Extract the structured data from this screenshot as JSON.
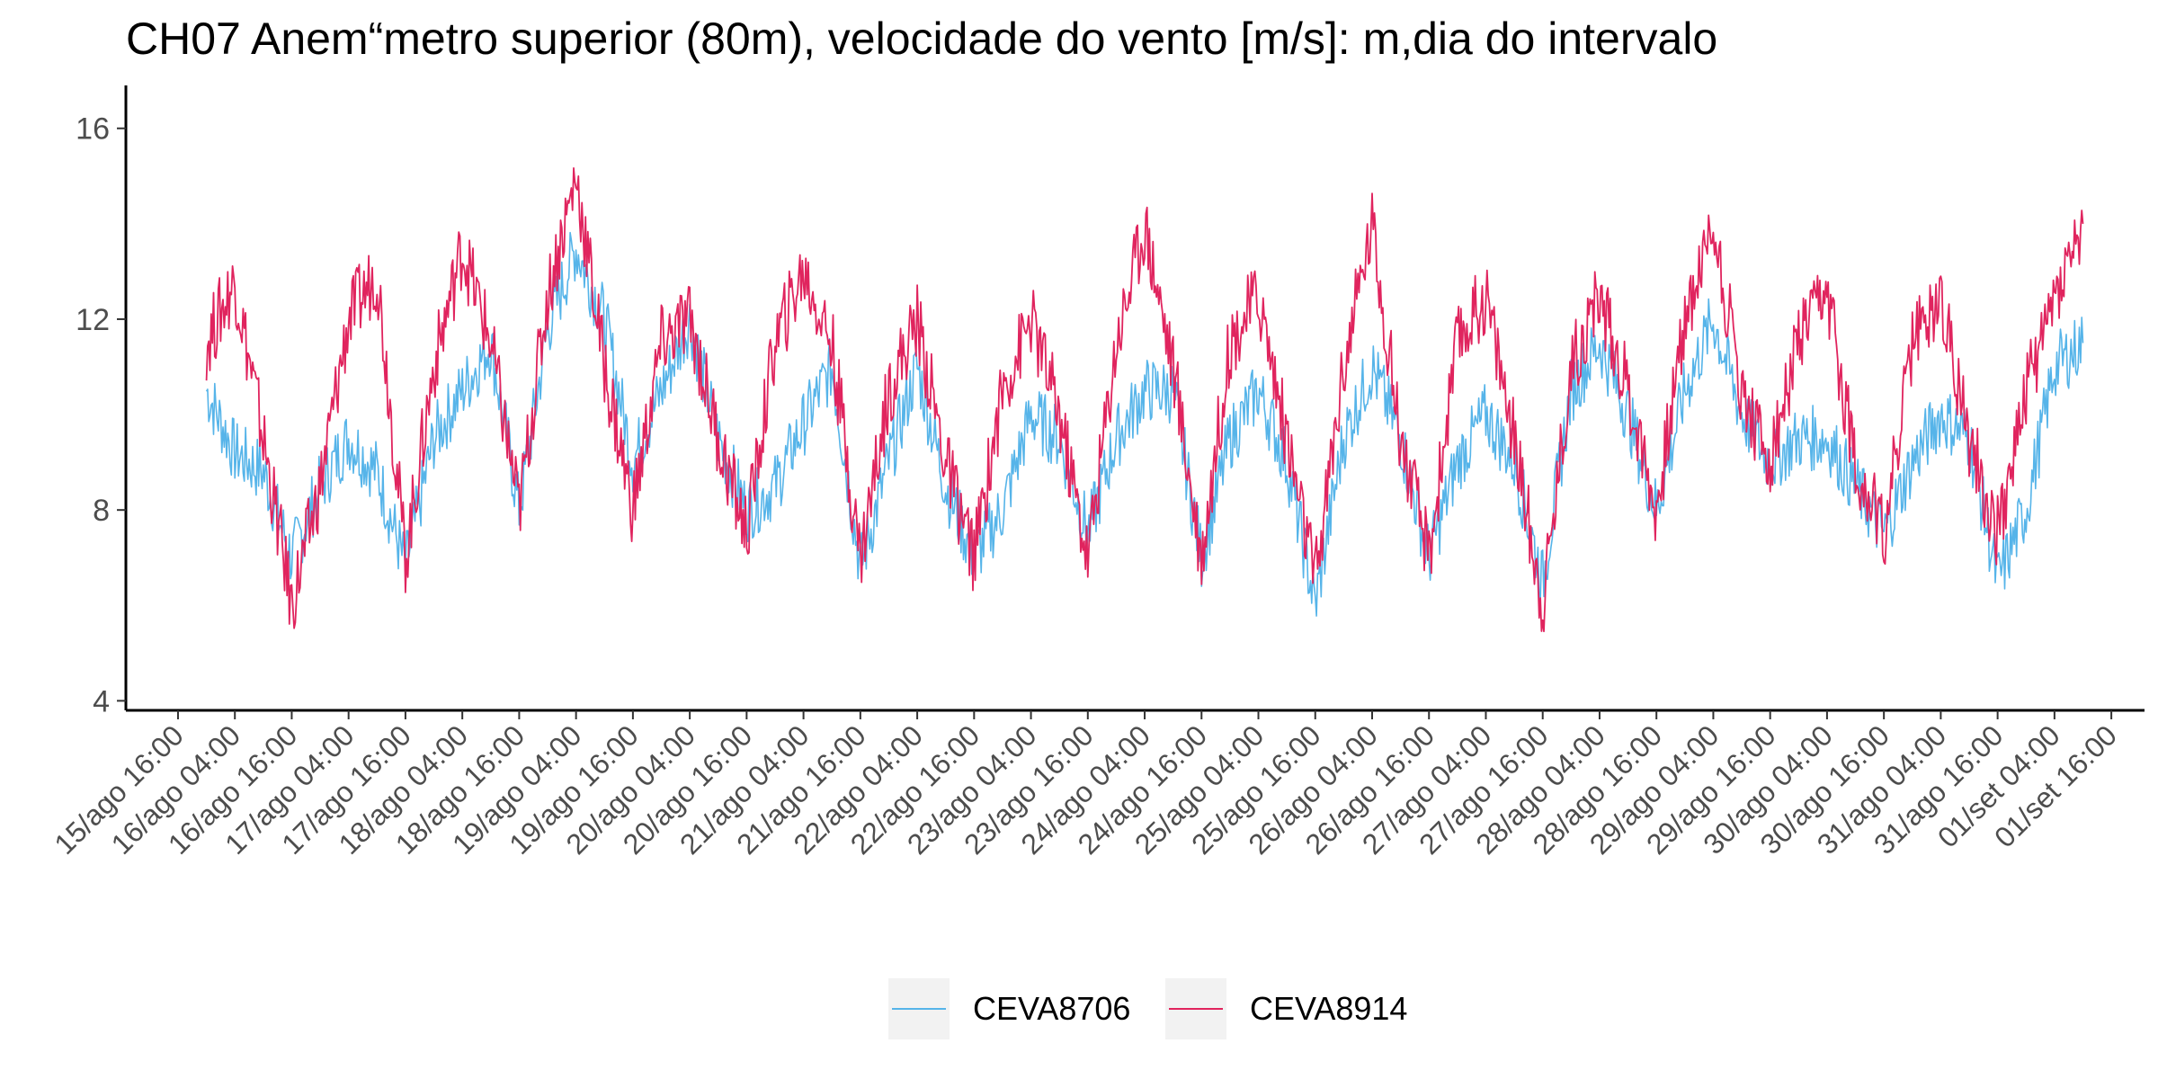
{
  "chart_data": {
    "type": "line",
    "title": "CH07 Anem“metro superior (80m), velocidade do vento [m/s]: m,dia do intervalo",
    "xlabel": "",
    "ylabel": "",
    "ylim": [
      3.8,
      16.9
    ],
    "yticks": [
      4,
      8,
      12,
      16
    ],
    "xlim_hours": [
      -11,
      415
    ],
    "x_start_label": "15/ago 16:00",
    "x_ticks": [
      "15/ago 16:00",
      "16/ago 04:00",
      "16/ago 16:00",
      "17/ago 04:00",
      "17/ago 16:00",
      "18/ago 04:00",
      "18/ago 16:00",
      "19/ago 04:00",
      "19/ago 16:00",
      "20/ago 04:00",
      "20/ago 16:00",
      "21/ago 04:00",
      "21/ago 16:00",
      "22/ago 04:00",
      "22/ago 16:00",
      "23/ago 04:00",
      "23/ago 16:00",
      "24/ago 04:00",
      "24/ago 16:00",
      "25/ago 04:00",
      "25/ago 16:00",
      "26/ago 04:00",
      "26/ago 16:00",
      "27/ago 04:00",
      "27/ago 16:00",
      "28/ago 04:00",
      "28/ago 16:00",
      "29/ago 04:00",
      "29/ago 16:00",
      "30/ago 04:00",
      "30/ago 16:00",
      "31/ago 04:00",
      "31/ago 16:00",
      "01/set 04:00",
      "01/set 16:00"
    ],
    "grid": false,
    "legend_position": "bottom",
    "series": [
      {
        "name": "CEVA8706",
        "color": "#56B4E9",
        "x": [
          "15/ago 22:00",
          "16/ago 04:00",
          "16/ago 10:00",
          "16/ago 16:00",
          "16/ago 22:00",
          "17/ago 04:00",
          "17/ago 10:00",
          "17/ago 16:00",
          "17/ago 22:00",
          "18/ago 04:00",
          "18/ago 10:00",
          "18/ago 16:00",
          "18/ago 22:00",
          "19/ago 04:00",
          "19/ago 10:00",
          "19/ago 16:00",
          "19/ago 22:00",
          "20/ago 04:00",
          "20/ago 10:00",
          "20/ago 16:00",
          "20/ago 22:00",
          "21/ago 04:00",
          "21/ago 10:00",
          "21/ago 16:00",
          "21/ago 22:00",
          "22/ago 04:00",
          "22/ago 10:00",
          "22/ago 16:00",
          "22/ago 22:00",
          "23/ago 04:00",
          "23/ago 10:00",
          "23/ago 16:00",
          "23/ago 22:00",
          "24/ago 04:00",
          "24/ago 10:00",
          "24/ago 16:00",
          "24/ago 22:00",
          "25/ago 04:00",
          "25/ago 10:00",
          "25/ago 16:00",
          "25/ago 22:00",
          "26/ago 04:00",
          "26/ago 10:00",
          "26/ago 16:00",
          "26/ago 22:00",
          "27/ago 04:00",
          "27/ago 10:00",
          "27/ago 16:00",
          "27/ago 22:00",
          "28/ago 04:00",
          "28/ago 10:00",
          "28/ago 16:00",
          "28/ago 22:00",
          "29/ago 04:00",
          "29/ago 10:00",
          "29/ago 16:00",
          "29/ago 22:00",
          "30/ago 04:00",
          "30/ago 10:00",
          "30/ago 16:00",
          "30/ago 22:00",
          "31/ago 04:00",
          "31/ago 10:00",
          "31/ago 16:00",
          "31/ago 22:00",
          "01/set 04:00",
          "01/set 10:00"
        ],
        "values": [
          10.5,
          9.2,
          8.8,
          7.0,
          8.5,
          9.5,
          8.8,
          6.8,
          9.5,
          10.5,
          11.5,
          8.0,
          11.8,
          13.5,
          12.0,
          9.0,
          10.5,
          12.0,
          9.5,
          8.0,
          8.5,
          9.8,
          11.0,
          6.8,
          9.0,
          11.0,
          8.5,
          7.0,
          8.0,
          10.0,
          9.5,
          7.5,
          9.5,
          10.5,
          10.5,
          7.0,
          9.5,
          10.5,
          9.0,
          6.0,
          9.5,
          11.0,
          9.5,
          7.0,
          9.0,
          10.0,
          9.0,
          6.5,
          10.5,
          11.5,
          10.0,
          8.0,
          10.5,
          12.0,
          10.0,
          9.0,
          9.5,
          9.5,
          8.5,
          7.5,
          9.0,
          10.0,
          9.5,
          6.5,
          8.0,
          11.0,
          11.5
        ]
      },
      {
        "name": "CEVA8914",
        "color": "#E0245E",
        "x": [
          "15/ago 22:00",
          "16/ago 04:00",
          "16/ago 10:00",
          "16/ago 16:00",
          "16/ago 22:00",
          "17/ago 04:00",
          "17/ago 10:00",
          "17/ago 16:00",
          "17/ago 22:00",
          "18/ago 04:00",
          "18/ago 10:00",
          "18/ago 16:00",
          "18/ago 22:00",
          "19/ago 04:00",
          "19/ago 10:00",
          "19/ago 16:00",
          "19/ago 22:00",
          "20/ago 04:00",
          "20/ago 10:00",
          "20/ago 16:00",
          "20/ago 22:00",
          "21/ago 04:00",
          "21/ago 10:00",
          "21/ago 16:00",
          "21/ago 22:00",
          "22/ago 04:00",
          "22/ago 10:00",
          "22/ago 16:00",
          "22/ago 22:00",
          "23/ago 04:00",
          "23/ago 10:00",
          "23/ago 16:00",
          "23/ago 22:00",
          "24/ago 04:00",
          "24/ago 10:00",
          "24/ago 16:00",
          "24/ago 22:00",
          "25/ago 04:00",
          "25/ago 10:00",
          "25/ago 16:00",
          "25/ago 22:00",
          "26/ago 04:00",
          "26/ago 10:00",
          "26/ago 16:00",
          "26/ago 22:00",
          "27/ago 04:00",
          "27/ago 10:00",
          "27/ago 16:00",
          "27/ago 22:00",
          "28/ago 04:00",
          "28/ago 10:00",
          "28/ago 16:00",
          "28/ago 22:00",
          "29/ago 04:00",
          "29/ago 10:00",
          "29/ago 16:00",
          "29/ago 22:00",
          "30/ago 04:00",
          "30/ago 10:00",
          "30/ago 16:00",
          "30/ago 22:00",
          "31/ago 04:00",
          "31/ago 10:00",
          "31/ago 16:00",
          "31/ago 22:00",
          "01/set 04:00",
          "01/set 10:00"
        ],
        "values": [
          11.5,
          12.8,
          9.5,
          6.0,
          8.5,
          12.0,
          13.0,
          7.0,
          11.0,
          13.5,
          11.5,
          8.0,
          12.5,
          15.0,
          11.0,
          8.0,
          11.5,
          12.0,
          9.5,
          7.5,
          11.5,
          13.0,
          11.5,
          7.0,
          10.5,
          12.0,
          9.0,
          7.0,
          10.5,
          12.0,
          10.0,
          7.0,
          11.5,
          14.0,
          11.0,
          7.0,
          11.5,
          12.5,
          9.5,
          6.5,
          11.0,
          14.0,
          9.5,
          7.0,
          11.5,
          12.5,
          9.5,
          6.0,
          11.0,
          12.5,
          10.5,
          8.0,
          12.0,
          14.0,
          10.5,
          9.0,
          11.5,
          12.5,
          9.0,
          7.5,
          11.5,
          12.5,
          9.5,
          7.5,
          10.5,
          12.5,
          14.0
        ]
      }
    ]
  }
}
